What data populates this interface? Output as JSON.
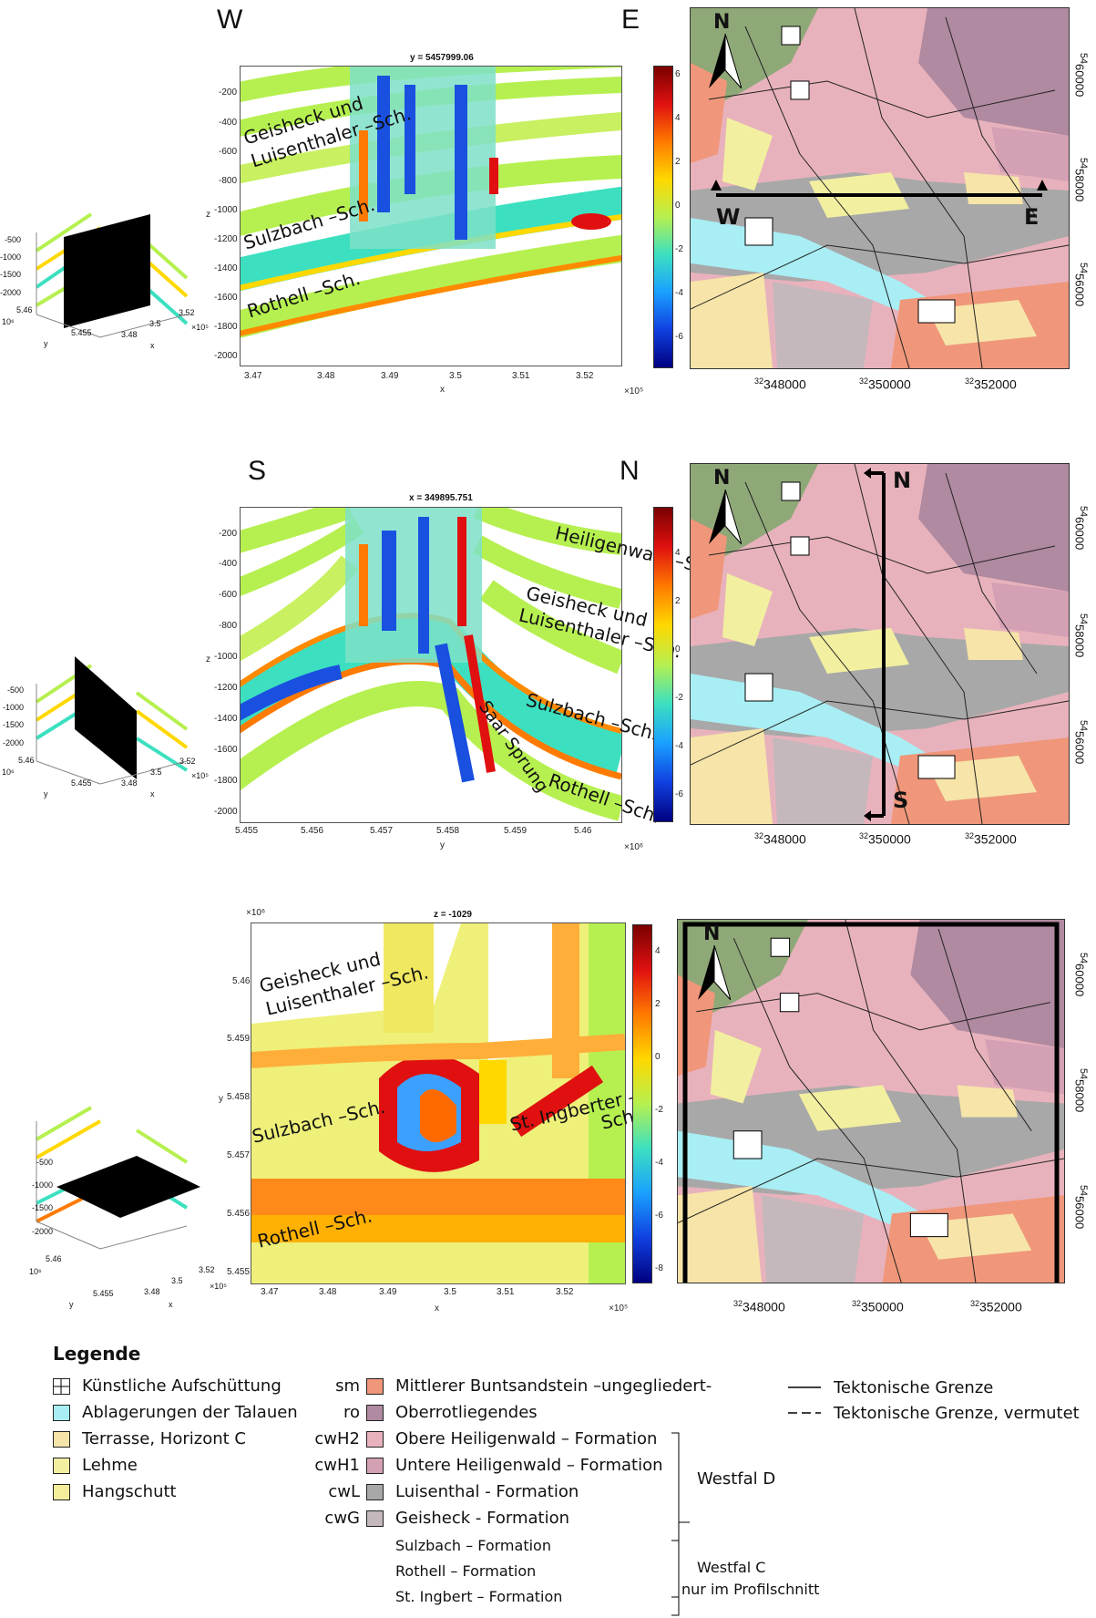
{
  "rows": [
    {
      "dir_left": "W",
      "dir_right": "E",
      "plot_title": "y = 5457999.06",
      "yticks": [
        "-200",
        "-400",
        "-600",
        "-800",
        "-1000",
        "-1200",
        "-1400",
        "-1600",
        "-1800",
        "-2000"
      ],
      "xticks": [
        "3.47",
        "3.48",
        "3.49",
        "3.5",
        "3.51",
        "3.52"
      ],
      "xlabel": "x",
      "ylabel": "z",
      "xexp": "×10⁵",
      "cbar_ticks": [
        "6",
        "4",
        "2",
        "0",
        "-2",
        "-4",
        "-6"
      ],
      "annotations": [
        "Geisheck und",
        "Luisenthaler –Sch.",
        "Sulzbach –Sch.",
        "Rothell –Sch."
      ],
      "map_labels": [
        "W",
        "E"
      ],
      "mini_zticks": [
        "-500",
        "-1000",
        "-1500",
        "-2000"
      ],
      "mini_xticks": [
        "3.48",
        "3.5",
        "3.52"
      ],
      "mini_yticks": [
        "5.46",
        "5.455"
      ],
      "mini_exp_y": "10⁶",
      "mini_exp_x": "×10⁵",
      "mini_xlabel": "x",
      "mini_ylabel": "y"
    },
    {
      "dir_left": "S",
      "dir_right": "N",
      "plot_title": "x = 349895.751",
      "yticks": [
        "-200",
        "-400",
        "-600",
        "-800",
        "-1000",
        "-1200",
        "-1400",
        "-1600",
        "-1800",
        "-2000"
      ],
      "xticks": [
        "5.455",
        "5.456",
        "5.457",
        "5.458",
        "5.459",
        "5.46"
      ],
      "xlabel": "y",
      "ylabel": "z",
      "xexp": "×10⁶",
      "cbar_ticks": [
        "4",
        "2",
        "0",
        "-2",
        "-4",
        "-6"
      ],
      "annotations": [
        "Heiligenwald –Sch.",
        "Geisheck und",
        "Luisenthaler –Sch.",
        "Sulzbach –Sch.",
        "Saar Sprung",
        "Rothell –Sch."
      ],
      "map_labels": [
        "N",
        "S"
      ],
      "mini_zticks": [
        "-500",
        "-1000",
        "-1500",
        "-2000"
      ],
      "mini_xticks": [
        "3.48",
        "3.5",
        "3.52"
      ],
      "mini_yticks": [
        "5.46",
        "5.455"
      ],
      "mini_exp_y": "10⁶",
      "mini_exp_x": "×10⁵",
      "mini_xlabel": "x",
      "mini_ylabel": "y"
    },
    {
      "plot_title": "z = -1029",
      "yticks": [
        "5.46",
        "5.459",
        "5.458",
        "5.457",
        "5.456",
        "5.455"
      ],
      "xticks": [
        "3.47",
        "3.48",
        "3.49",
        "3.5",
        "3.51",
        "3.52"
      ],
      "xlabel": "x",
      "ylabel": "y",
      "xexp": "×10⁵",
      "yexp": "×10⁶",
      "cbar_ticks": [
        "4",
        "2",
        "0",
        "-2",
        "-4",
        "-6",
        "-8"
      ],
      "annotations": [
        "Geisheck und",
        "Luisenthaler –Sch.",
        "Sulzbach –Sch.",
        "St. Ingberter –",
        "Sch.",
        "Rothell –Sch."
      ],
      "mini_zticks": [
        "-500",
        "-1000",
        "-1500",
        "-2000"
      ],
      "mini_xticks": [
        "3.48",
        "3.5",
        "3.52"
      ],
      "mini_yticks": [
        "5.46",
        "5.455"
      ],
      "mini_exp_y": "10⁶",
      "mini_exp_x": "×10⁵",
      "mini_xlabel": "x",
      "mini_ylabel": "y"
    }
  ],
  "map": {
    "north": "N",
    "xticks_base": [
      "32",
      "32",
      "32"
    ],
    "xticks": [
      "348000",
      "350000",
      "352000"
    ],
    "yticks_base": [
      "54",
      "54",
      "54"
    ],
    "yticks": [
      "60000",
      "58000",
      "56000"
    ]
  },
  "legend": {
    "title": "Legende",
    "left": [
      {
        "label": "Künstliche Aufschüttung",
        "icon": "hatch-grid-icon"
      },
      {
        "label": "Ablagerungen der Talauen",
        "color": "#a8eef4"
      },
      {
        "label": "Terrasse, Horizont C",
        "color": "#f6e4a8"
      },
      {
        "label": "Lehme",
        "color": "#f2f0a0"
      },
      {
        "label": "Hangschutt",
        "color": "#f4ee9c"
      }
    ],
    "middle": [
      {
        "code": "sm",
        "label": "Mittlerer Buntsandstein –ungegliedert-",
        "color": "#f0967a"
      },
      {
        "code": "ro",
        "label": "Oberrotliegendes",
        "color": "#b08aa0"
      },
      {
        "code": "cwH2",
        "label": "Obere Heiligenwald – Formation",
        "color": "#e8b2bc"
      },
      {
        "code": "cwH1",
        "label": "Untere Heiligenwald – Formation",
        "color": "#d4a0b4"
      },
      {
        "code": "cwL",
        "label": "Luisenthal - Formation",
        "color": "#a8a8a8"
      },
      {
        "code": "cwG",
        "label": "Geisheck - Formation",
        "color": "#c4b8bc"
      }
    ],
    "westfal_c_items": [
      "Sulzbach – Formation",
      "Rothell – Formation",
      "St. Ingbert – Formation"
    ],
    "westfal_d": "Westfal D",
    "westfal_c": "Westfal C",
    "westfal_c_note": "nur im Profilschnitt",
    "lines": [
      {
        "label": "Tektonische Grenze"
      },
      {
        "label": "Tektonische Grenze, vermutet"
      }
    ]
  }
}
